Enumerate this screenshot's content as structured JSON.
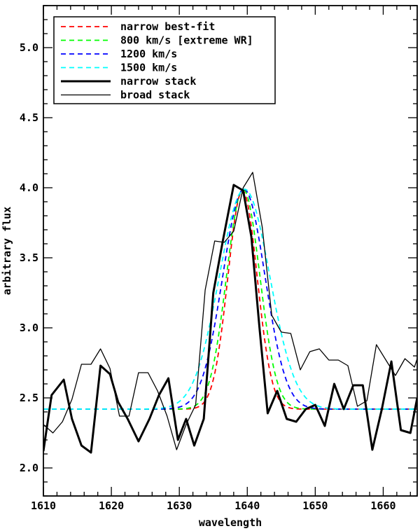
{
  "chart_data": {
    "type": "line",
    "title": "",
    "xlabel": "wavelength",
    "ylabel": "arbitrary flux",
    "xlim": [
      1610,
      1665
    ],
    "ylim": [
      1.8,
      5.3
    ],
    "xticks": [
      "1610",
      "1620",
      "1630",
      "1640",
      "1650",
      "1660"
    ],
    "xtick_values": [
      1610,
      1620,
      1630,
      1640,
      1650,
      1660
    ],
    "xminor_step": 2,
    "yticks": [
      "2.0",
      "2.5",
      "3.0",
      "3.5",
      "4.0",
      "4.5",
      "5.0"
    ],
    "ytick_values": [
      2.0,
      2.5,
      3.0,
      3.5,
      4.0,
      4.5,
      5.0
    ],
    "yminor_step": 0.1,
    "grid": false,
    "legend_position": "top-left",
    "series": [
      {
        "name": "narrow best-fit",
        "style": "dashed",
        "color": "#ff0000",
        "model": {
          "kind": "gaussian",
          "baseline": 2.42,
          "peak": 3.98,
          "center": 1639.3,
          "sigma": 2.15
        },
        "x": [
          1610,
          1615,
          1620,
          1625,
          1628,
          1630,
          1632,
          1634,
          1636,
          1638,
          1639.3,
          1641,
          1643,
          1645,
          1647,
          1650,
          1655,
          1660,
          1665
        ],
        "y": [
          2.42,
          2.42,
          2.42,
          2.42,
          2.42,
          2.44,
          2.62,
          3.05,
          3.55,
          3.9,
          3.98,
          3.79,
          3.18,
          2.72,
          2.49,
          2.42,
          2.42,
          2.42,
          2.42
        ]
      },
      {
        "name": "800 km/s [extreme WR]",
        "style": "dashed",
        "color": "#00ff00",
        "model": {
          "kind": "gaussian",
          "baseline": 2.42,
          "peak": 3.99,
          "center": 1639.4,
          "sigma": 2.45
        },
        "x": [
          1610,
          1615,
          1620,
          1625,
          1628,
          1630,
          1632,
          1634,
          1636,
          1638,
          1639.4,
          1641,
          1643,
          1645,
          1647,
          1650,
          1655,
          1660,
          1665
        ],
        "y": [
          2.42,
          2.42,
          2.42,
          2.42,
          2.43,
          2.48,
          2.71,
          3.12,
          3.59,
          3.91,
          3.99,
          3.81,
          3.27,
          2.84,
          2.57,
          2.44,
          2.42,
          2.42,
          2.42
        ]
      },
      {
        "name": "1200 km/s",
        "style": "dashed",
        "color": "#0000ff",
        "model": {
          "kind": "gaussian",
          "baseline": 2.42,
          "peak": 3.99,
          "center": 1639.5,
          "sigma": 3.1
        },
        "x": [
          1610,
          1615,
          1620,
          1625,
          1628,
          1630,
          1632,
          1634,
          1636,
          1638,
          1639.5,
          1641,
          1643,
          1645,
          1647,
          1650,
          1655,
          1660,
          1665
        ],
        "y": [
          2.42,
          2.42,
          2.42,
          2.43,
          2.47,
          2.57,
          2.87,
          3.28,
          3.7,
          3.93,
          3.99,
          3.87,
          3.44,
          3.05,
          2.74,
          2.5,
          2.42,
          2.42,
          2.42
        ]
      },
      {
        "name": "1500 km/s",
        "style": "dashed",
        "color": "#00ffff",
        "model": {
          "kind": "gaussian",
          "baseline": 2.42,
          "peak": 3.99,
          "center": 1639.6,
          "sigma": 3.7
        },
        "x": [
          1610,
          1615,
          1620,
          1625,
          1628,
          1630,
          1632,
          1634,
          1636,
          1638,
          1639.6,
          1641,
          1643,
          1645,
          1647,
          1650,
          1655,
          1660,
          1665
        ],
        "y": [
          2.42,
          2.42,
          2.42,
          2.46,
          2.55,
          2.68,
          2.98,
          3.38,
          3.75,
          3.94,
          3.99,
          3.9,
          3.57,
          3.19,
          2.89,
          2.6,
          2.44,
          2.42,
          2.42
        ]
      },
      {
        "name": "narrow stack",
        "style": "solid",
        "color": "#000000",
        "width": 3,
        "x": [
          1610,
          1611.2,
          1613,
          1614.2,
          1615.6,
          1617,
          1618.4,
          1619.8,
          1621,
          1622.4,
          1624,
          1625.6,
          1627,
          1628.4,
          1629.8,
          1631,
          1632.2,
          1633.6,
          1635,
          1636.4,
          1638,
          1639.4,
          1640.6,
          1641.8,
          1643,
          1644.4,
          1645.8,
          1647.2,
          1648.6,
          1650,
          1651.4,
          1652.8,
          1654.2,
          1655.6,
          1657,
          1658.4,
          1659.8,
          1661.2,
          1662.6,
          1664,
          1665
        ],
        "y": [
          2.12,
          2.52,
          2.63,
          2.35,
          2.16,
          2.11,
          2.73,
          2.67,
          2.47,
          2.35,
          2.19,
          2.35,
          2.52,
          2.64,
          2.2,
          2.35,
          2.16,
          2.35,
          3.25,
          3.62,
          4.02,
          3.98,
          3.65,
          3.0,
          2.39,
          2.55,
          2.35,
          2.33,
          2.42,
          2.45,
          2.3,
          2.6,
          2.42,
          2.59,
          2.59,
          2.13,
          2.42,
          2.76,
          2.27,
          2.25,
          2.5
        ]
      },
      {
        "name": "broad stack",
        "style": "solid",
        "color": "#000000",
        "width": 1.3,
        "x": [
          1610,
          1611.4,
          1612.8,
          1614.2,
          1615.6,
          1617,
          1618.4,
          1619.8,
          1621.2,
          1622.6,
          1624,
          1625.4,
          1626.8,
          1628.2,
          1629.6,
          1631,
          1632.4,
          1633.8,
          1635.2,
          1636.6,
          1638,
          1639.4,
          1640.8,
          1642.2,
          1643.6,
          1645,
          1646.4,
          1647.8,
          1649.2,
          1650.6,
          1652,
          1653.4,
          1654.8,
          1656.2,
          1657.6,
          1659,
          1660.4,
          1661.8,
          1663.2,
          1664.6,
          1665
        ],
        "y": [
          2.31,
          2.25,
          2.33,
          2.49,
          2.74,
          2.74,
          2.85,
          2.71,
          2.37,
          2.37,
          2.68,
          2.68,
          2.55,
          2.37,
          2.13,
          2.31,
          2.45,
          3.27,
          3.62,
          3.61,
          3.69,
          4.0,
          4.11,
          3.72,
          3.09,
          2.97,
          2.96,
          2.7,
          2.83,
          2.85,
          2.77,
          2.77,
          2.73,
          2.44,
          2.48,
          2.88,
          2.77,
          2.66,
          2.78,
          2.72,
          2.78
        ]
      }
    ]
  }
}
